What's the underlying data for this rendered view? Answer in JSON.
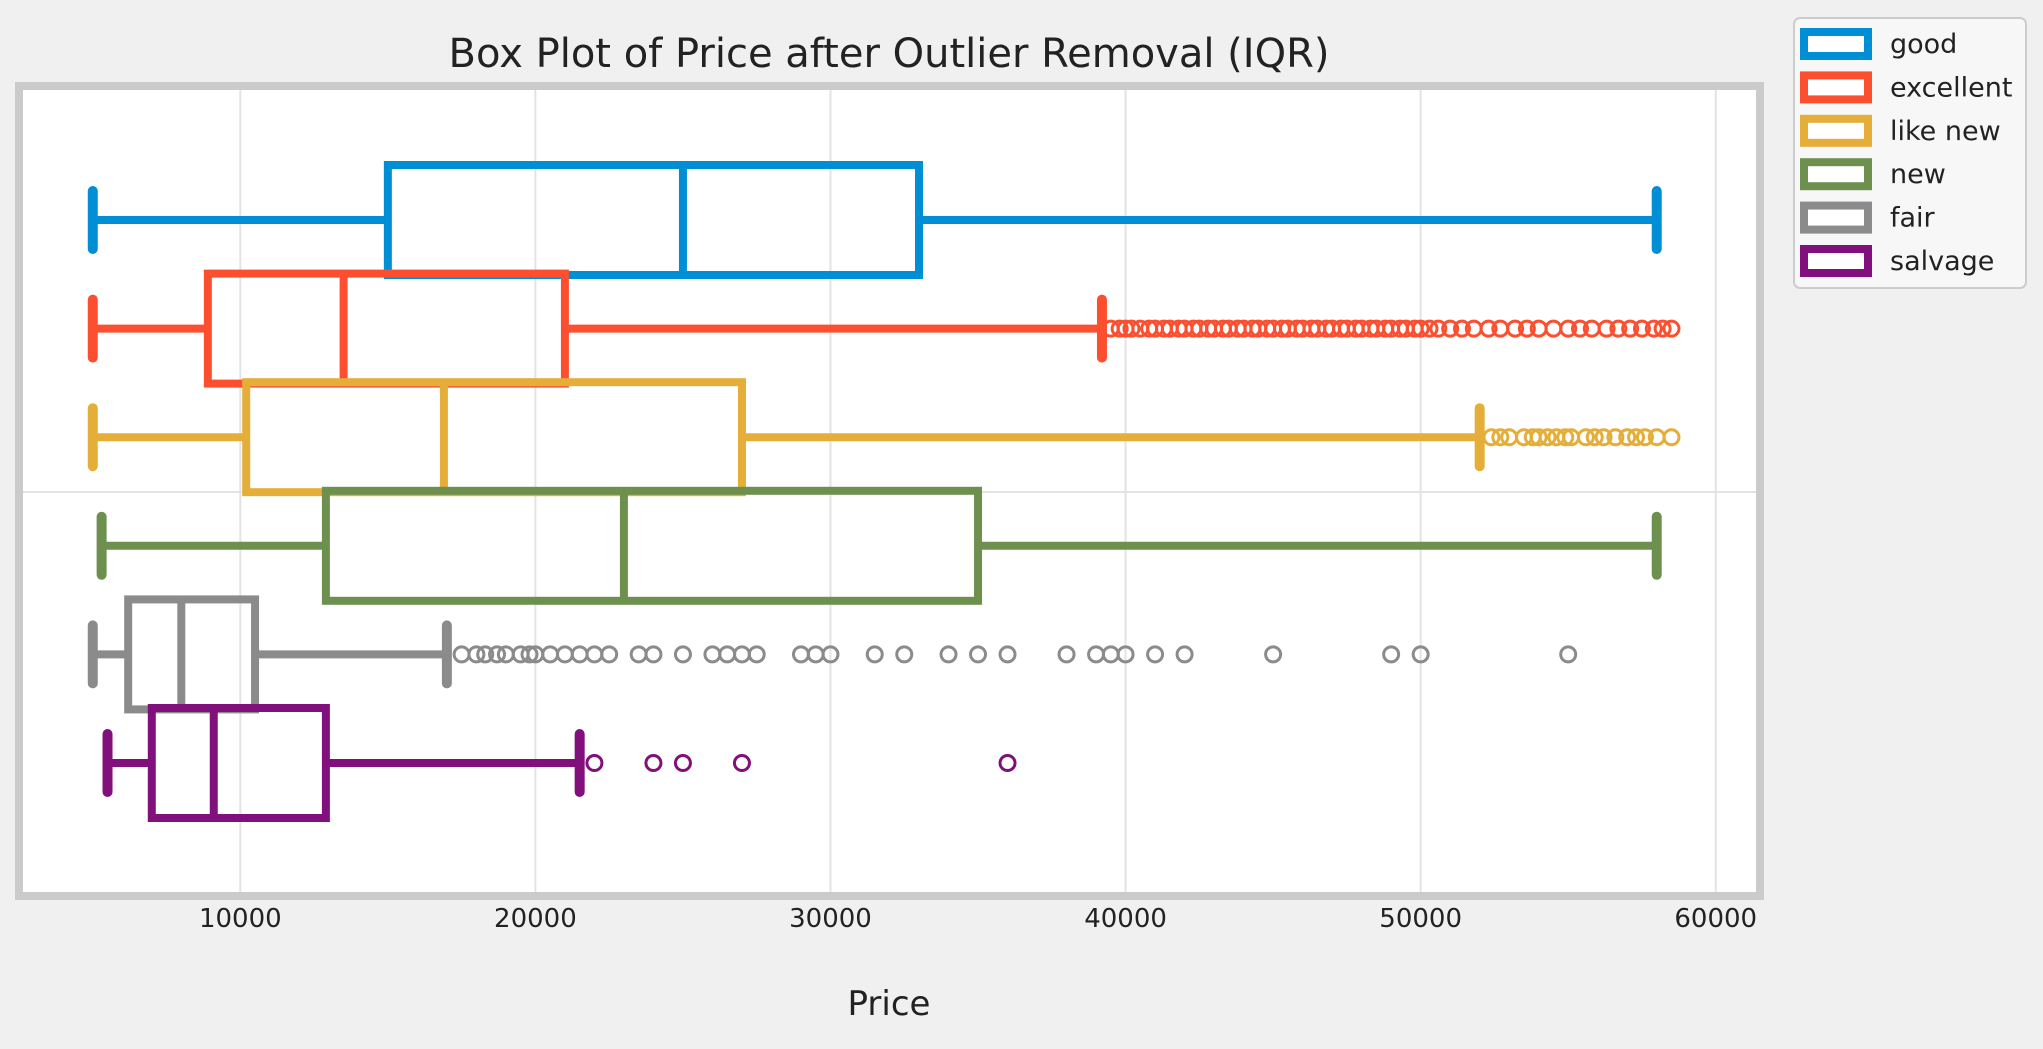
{
  "chart_data": {
    "type": "box",
    "title": "Box Plot of Price after Outlier Removal (IQR)",
    "xlabel": "Price",
    "ylabel": "",
    "xlim": [
      2500,
      61500
    ],
    "xticks": [
      10000,
      20000,
      30000,
      40000,
      50000,
      60000
    ],
    "xtick_labels": [
      "10000",
      "20000",
      "30000",
      "40000",
      "50000",
      "60000"
    ],
    "grid": true,
    "legend_position": "outside-top-right",
    "series": [
      {
        "name": "good",
        "color": "#008fd5",
        "whisker_low": 5000,
        "q1": 15000,
        "median": 25000,
        "q3": 33000,
        "whisker_high": 58000,
        "outliers": []
      },
      {
        "name": "excellent",
        "color": "#fc4f30",
        "whisker_low": 5000,
        "q1": 8900,
        "median": 13500,
        "q3": 21000,
        "whisker_high": 39200,
        "outliers": [
          39500,
          39800,
          40000,
          40200,
          40500,
          40800,
          41000,
          41300,
          41500,
          41800,
          42000,
          42300,
          42500,
          42800,
          43000,
          43300,
          43500,
          43800,
          44000,
          44300,
          44500,
          44800,
          45000,
          45300,
          45500,
          45800,
          46000,
          46300,
          46500,
          46800,
          47000,
          47300,
          47500,
          47800,
          48000,
          48300,
          48500,
          48800,
          49000,
          49300,
          49500,
          49800,
          50000,
          50300,
          50600,
          51000,
          51400,
          51800,
          52300,
          52700,
          53200,
          53600,
          54000,
          54500,
          55000,
          55400,
          55800,
          56300,
          56700,
          57100,
          57500,
          57900,
          58200,
          58500
        ]
      },
      {
        "name": "like new",
        "color": "#e5ae38",
        "whisker_low": 5000,
        "q1": 10200,
        "median": 16900,
        "q3": 27000,
        "whisker_high": 52000,
        "outliers": [
          52400,
          52700,
          53000,
          53500,
          53800,
          54000,
          54300,
          54600,
          54900,
          55100,
          55600,
          55900,
          56200,
          56600,
          57000,
          57300,
          57600,
          58000,
          58500
        ]
      },
      {
        "name": "new",
        "color": "#6d904f",
        "whisker_low": 5300,
        "q1": 12900,
        "median": 23000,
        "q3": 35000,
        "whisker_high": 58000,
        "outliers": []
      },
      {
        "name": "fair",
        "color": "#8b8b8b",
        "whisker_low": 5000,
        "q1": 6200,
        "median": 8000,
        "q3": 10500,
        "whisker_high": 17000,
        "outliers": [
          17500,
          18000,
          18300,
          18700,
          19000,
          19500,
          19800,
          20000,
          20500,
          21000,
          21500,
          22000,
          22500,
          23500,
          24000,
          25000,
          26000,
          26500,
          27000,
          27500,
          29000,
          29500,
          30000,
          31500,
          32500,
          34000,
          35000,
          36000,
          38000,
          39000,
          39500,
          40000,
          41000,
          42000,
          45000,
          49000,
          50000,
          55000
        ]
      },
      {
        "name": "salvage",
        "color": "#810f7c",
        "whisker_low": 5500,
        "q1": 7000,
        "median": 9100,
        "q3": 12900,
        "whisker_high": 21500,
        "outliers": [
          22000,
          24000,
          25000,
          27000,
          36000
        ]
      }
    ]
  }
}
